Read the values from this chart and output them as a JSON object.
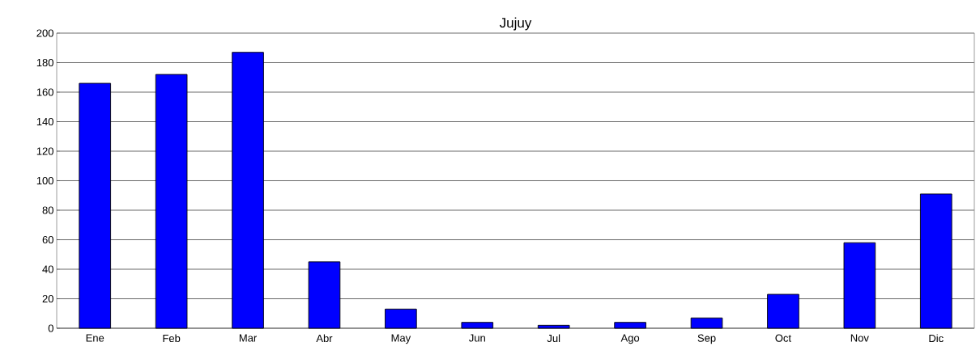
{
  "chart_data": {
    "type": "bar",
    "title": "Jujuy",
    "categories": [
      "Ene",
      "Feb",
      "Mar",
      "Abr",
      "May",
      "Jun",
      "Jul",
      "Ago",
      "Sep",
      "Oct",
      "Nov",
      "Dic"
    ],
    "values": [
      166,
      172,
      187,
      45,
      13,
      4,
      2,
      4,
      7,
      23,
      58,
      91
    ],
    "color": "#0000ff",
    "ylim": [
      0,
      200
    ],
    "yticks": [
      0,
      20,
      40,
      60,
      80,
      100,
      120,
      140,
      160,
      180,
      200
    ],
    "grid": "y"
  }
}
